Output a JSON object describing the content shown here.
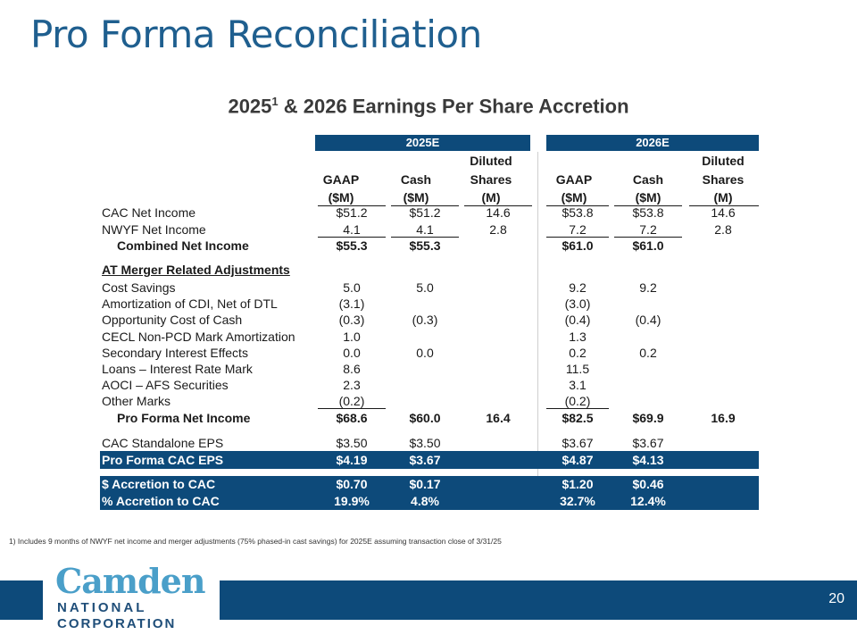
{
  "title": "Pro Forma Reconciliation",
  "subtitle": {
    "main_a": "2025",
    "sup": "1",
    "main_b": " & 2026 Earnings Per Share Accretion"
  },
  "header": {
    "y2025": "2025E",
    "y2026": "2026E",
    "gaap": "GAAP",
    "cash": "Cash",
    "diluted": "Diluted",
    "shares": "Shares",
    "usd_m": "($M)",
    "m": "(M)"
  },
  "rows": [
    {
      "label": "CAC Net Income",
      "v": [
        "$51.2",
        "$51.2",
        "14.6",
        "$53.8",
        "$53.8",
        "14.6"
      ]
    },
    {
      "label": "NWYF Net Income",
      "v": [
        "4.1",
        "4.1",
        "2.8",
        "7.2",
        "7.2",
        "2.8"
      ]
    },
    {
      "label": "Combined Net Income",
      "v": [
        "$55.3",
        "$55.3",
        "",
        "$61.0",
        "$61.0",
        ""
      ]
    },
    {
      "label": "AT Merger Related Adjustments",
      "v": [
        "",
        "",
        "",
        "",
        "",
        ""
      ]
    },
    {
      "label": "Cost Savings",
      "v": [
        "5.0",
        "5.0",
        "",
        "9.2",
        "9.2",
        ""
      ]
    },
    {
      "label": "Amortization of CDI, Net of DTL",
      "v": [
        "(3.1)",
        "",
        "",
        "(3.0)",
        "",
        ""
      ]
    },
    {
      "label": "Opportunity Cost of Cash",
      "v": [
        "(0.3)",
        "(0.3)",
        "",
        "(0.4)",
        "(0.4)",
        ""
      ]
    },
    {
      "label": "CECL Non-PCD Mark Amortization",
      "v": [
        "1.0",
        "",
        "",
        "1.3",
        "",
        ""
      ]
    },
    {
      "label": "Secondary Interest Effects",
      "v": [
        "0.0",
        "0.0",
        "",
        "0.2",
        "0.2",
        ""
      ]
    },
    {
      "label": "Loans – Interest Rate Mark",
      "v": [
        "8.6",
        "",
        "",
        "11.5",
        "",
        ""
      ]
    },
    {
      "label": "AOCI – AFS Securities",
      "v": [
        "2.3",
        "",
        "",
        "3.1",
        "",
        ""
      ]
    },
    {
      "label": "Other Marks",
      "v": [
        "(0.2)",
        "",
        "",
        "(0.2)",
        "",
        ""
      ]
    },
    {
      "label": "Pro Forma Net Income",
      "v": [
        "$68.6",
        "$60.0",
        "16.4",
        "$82.5",
        "$69.9",
        "16.9"
      ]
    },
    {
      "label": "CAC Standalone EPS",
      "v": [
        "$3.50",
        "$3.50",
        "",
        "$3.67",
        "$3.67",
        ""
      ]
    },
    {
      "label": "Pro Forma CAC EPS",
      "v": [
        "$4.19",
        "$3.67",
        "",
        "$4.87",
        "$4.13",
        ""
      ]
    },
    {
      "label": "$ Accretion to CAC",
      "v": [
        "$0.70",
        "$0.17",
        "",
        "$1.20",
        "$0.46",
        ""
      ]
    },
    {
      "label": "% Accretion to CAC",
      "v": [
        "19.9%",
        "4.8%",
        "",
        "32.7%",
        "12.4%",
        ""
      ]
    }
  ],
  "footnote": "1) Includes 9 months of NWYF net income and merger adjustments (75% phased-in cast savings) for 2025E assuming transaction close of 3/31/25",
  "logo": {
    "line1": "Camden",
    "line2": "NATIONAL",
    "line3": "CORPORATION"
  },
  "page_number": "20",
  "colors": {
    "title": "#1f5f8f",
    "band": "#0d4a7a",
    "logo_light": "#4a9fc9",
    "logo_dark": "#1f4e79"
  }
}
